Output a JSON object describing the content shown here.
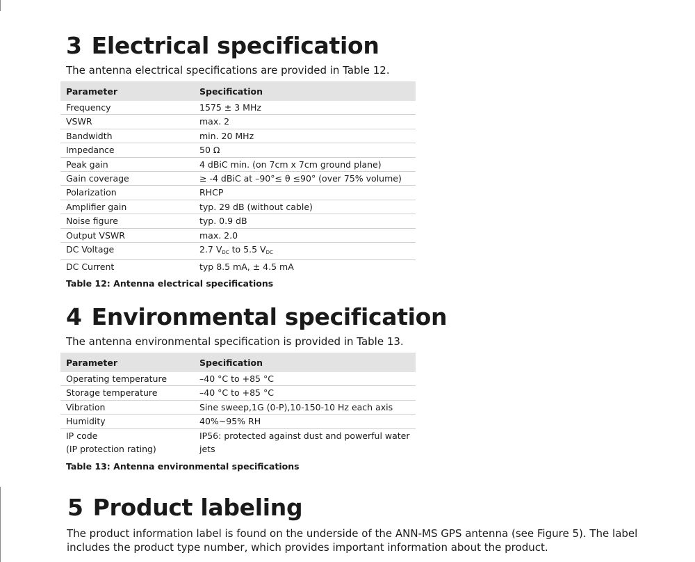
{
  "section3": {
    "number": "3",
    "title": "Electrical specification",
    "intro": "The antenna electrical specifications are provided in Table 12.",
    "table": {
      "headers": [
        "Parameter",
        "Specification"
      ],
      "rows": [
        [
          "Frequency",
          "1575 ± 3 MHz"
        ],
        [
          "VSWR",
          "max. 2"
        ],
        [
          "Bandwidth",
          "min. 20 MHz"
        ],
        [
          "Impedance",
          "50 Ω"
        ],
        [
          "Peak gain",
          "4 dBiC min. (on 7cm x 7cm ground plane)"
        ],
        [
          "Gain coverage",
          "≥ -4 dBiC at –90°≤ θ ≤90° (over 75% volume)"
        ],
        [
          "Polarization",
          "RHCP"
        ],
        [
          "Amplifier gain",
          "typ. 29 dB (without cable)"
        ],
        [
          "Noise figure",
          "typ. 0.9 dB"
        ],
        [
          "Output VSWR",
          "max. 2.0"
        ],
        [
          "DC Voltage",
          ""
        ],
        [
          "DC Current",
          "typ 8.5 mA, ± 4.5 mA"
        ]
      ],
      "dc_voltage": {
        "min": "2.7 V",
        "sub": "DC",
        "mid": " to 5.5 V"
      }
    },
    "caption": "Table 12: Antenna electrical specifications"
  },
  "section4": {
    "number": "4",
    "title": "Environmental specification",
    "intro": "The antenna environmental specification is provided in Table 13.",
    "table": {
      "headers": [
        "Parameter",
        "Specification"
      ],
      "rows": [
        [
          "Operating temperature",
          "–40 °C to +85 °C"
        ],
        [
          "Storage temperature",
          "–40 °C to +85 °C"
        ],
        [
          "Vibration",
          "Sine sweep,1G (0-P),10-150-10 Hz each axis"
        ],
        [
          "Humidity",
          "40%~95% RH"
        ],
        [
          "IP code",
          "IP56: protected against dust and powerful water jets"
        ]
      ],
      "ip_subline": "(IP protection rating)"
    },
    "caption": "Table 13: Antenna environmental specifications"
  },
  "section5": {
    "number": "5",
    "title": "Product labeling",
    "intro": "The product information label is found on the underside of the ANN-MS GPS antenna (see Figure 5). The label includes the product type number, which provides important information about the product."
  }
}
